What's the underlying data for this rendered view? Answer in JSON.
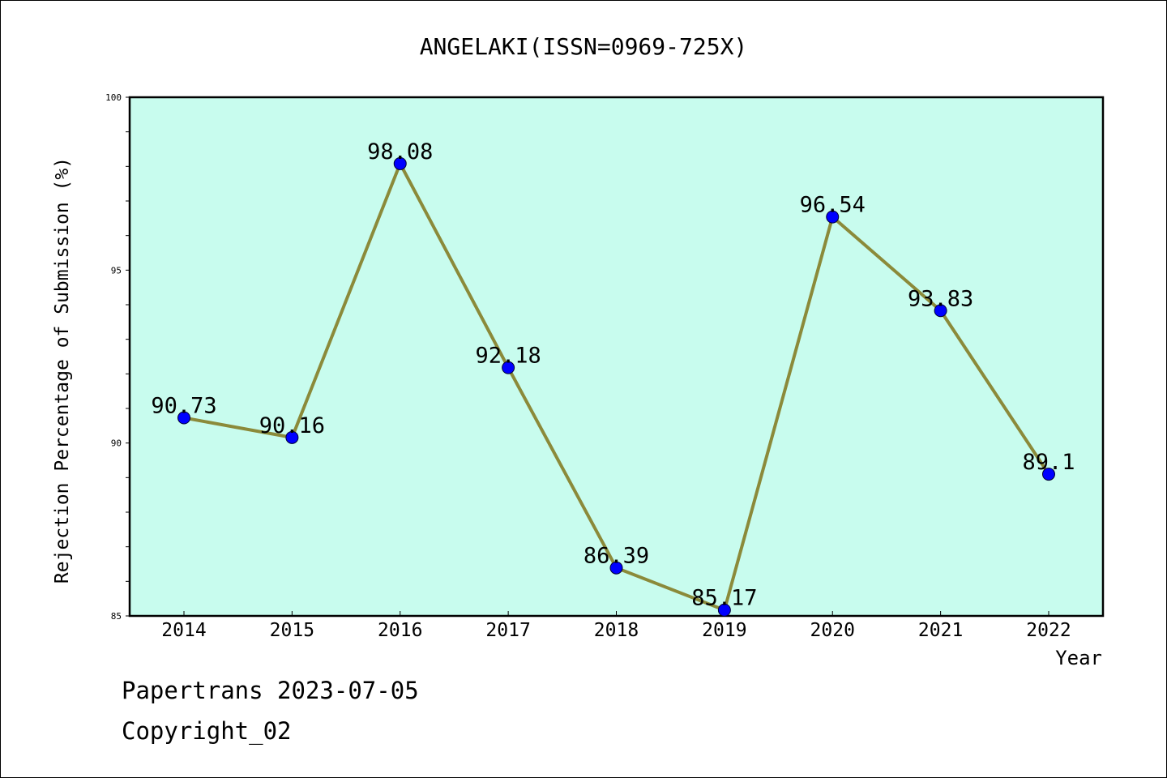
{
  "chart_data": {
    "type": "line",
    "title": "ANGELAKI(ISSN=0969-725X)",
    "xlabel": "Year",
    "ylabel": "Rejection Percentage of Submission (%)",
    "categories": [
      "2014",
      "2015",
      "2016",
      "2017",
      "2018",
      "2019",
      "2020",
      "2021",
      "2022"
    ],
    "values": [
      90.73,
      90.16,
      98.08,
      92.18,
      86.39,
      85.17,
      96.54,
      93.83,
      89.1
    ],
    "data_labels": [
      "90.73",
      "90.16",
      "98.08",
      "92.18",
      "86.39",
      "85.17",
      "96.54",
      "93.83",
      "89.1"
    ],
    "ylim": [
      85,
      100
    ],
    "yticks": [
      85,
      90,
      95,
      100
    ],
    "ytick_labels": [
      "85",
      "90",
      "95",
      "100"
    ],
    "y_minor_step": 1,
    "grid": false,
    "colors": {
      "plot_background": "#c8fcee",
      "line": "#8b8a3a",
      "marker": "#0000ff"
    }
  },
  "footer": {
    "date_text": "Papertrans 2023-07-05",
    "copyright_text": "Copyright_02"
  }
}
